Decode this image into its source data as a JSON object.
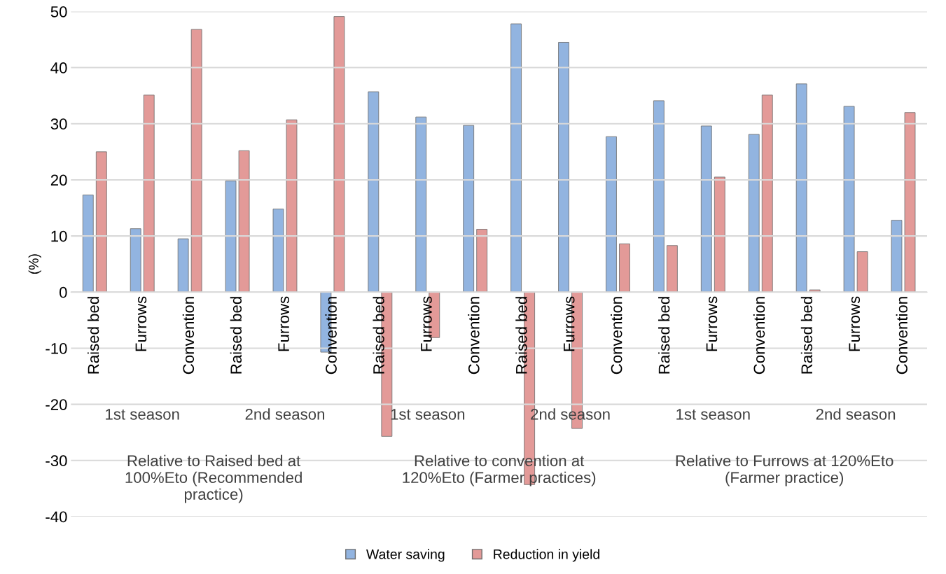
{
  "chart_data": {
    "type": "bar",
    "ylabel": "(%)",
    "categories": [
      "Raised bed",
      "Furrows",
      "Convention",
      "Raised bed",
      "Furrows",
      "Convention",
      "Raised bed",
      "Furrows",
      "Convention",
      "Raised bed",
      "Furrows",
      "Convention",
      "Raised bed",
      "Furrows",
      "Convention",
      "Raised bed",
      "Furrows",
      "Convention"
    ],
    "series": [
      {
        "name": "Water saving",
        "color": "#92b4e0",
        "values": [
          17.3,
          11.3,
          9.5,
          19.8,
          14.8,
          -10.7,
          35.7,
          31.2,
          29.7,
          47.8,
          44.5,
          27.7,
          34.1,
          29.6,
          28.1,
          37.1,
          33.1,
          12.8
        ]
      },
      {
        "name": "Reduction in yield",
        "color": "#e39a98",
        "values": [
          25.0,
          35.1,
          46.8,
          25.2,
          30.7,
          49.1,
          -25.7,
          -8.1,
          11.2,
          -34.3,
          -24.3,
          8.6,
          8.3,
          20.5,
          35.1,
          0.4,
          7.2,
          32.0
        ]
      }
    ],
    "annotations": [
      "1st season",
      "2nd season",
      "1st season",
      "2nd season",
      "1st season",
      "2nd season",
      "Relative to Raised bed at\n100%Eto (Recommended\npractice)",
      "Relative to convention at\n120%Eto (Farmer practices)",
      "Relative to Furrows at 120%Eto\n(Farmer practice)"
    ],
    "ylim": [
      -40,
      50
    ],
    "yticks": [
      -40,
      -30,
      -20,
      -10,
      0,
      10,
      20,
      30,
      40,
      50
    ],
    "grid": "y",
    "legend": "bottom"
  }
}
